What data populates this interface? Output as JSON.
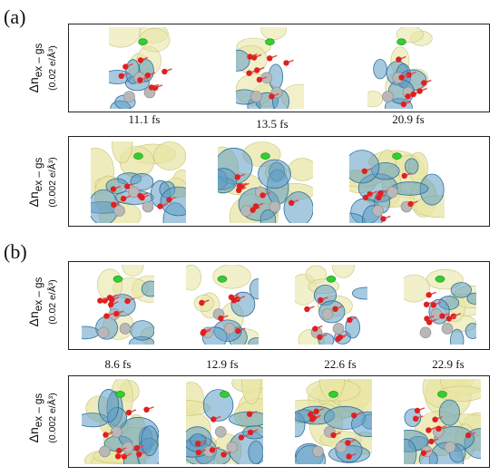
{
  "panels": [
    {
      "label": "(a)",
      "rows": [
        {
          "ylabel_main": "Δn",
          "ylabel_sub": "ex – gs",
          "ylabel_unit": "(0.02 e/Å³)"
        },
        {
          "ylabel_main": "Δn",
          "ylabel_sub": "ex – gs",
          "ylabel_unit": "(0.002 e/Å³)"
        }
      ],
      "times": [
        "11.1 fs",
        "13.5 fs",
        "20.9 fs"
      ]
    },
    {
      "label": "(b)",
      "rows": [
        {
          "ylabel_main": "Δn",
          "ylabel_sub": "ex – gs",
          "ylabel_unit": "(0.02 e/Å³)"
        },
        {
          "ylabel_main": "Δn",
          "ylabel_sub": "ex – gs",
          "ylabel_unit": "(0.002 e/Å³)"
        }
      ],
      "times": [
        "8.6 fs",
        "12.9 fs",
        "22.6 fs",
        "22.9 fs"
      ]
    }
  ],
  "colors": {
    "isosurface_positive": "#e8e6a6",
    "isosurface_negative": "#5e9cc4",
    "oxygen": "#e02020",
    "metal": "#b8b8b8",
    "chlorine": "#30d030"
  }
}
